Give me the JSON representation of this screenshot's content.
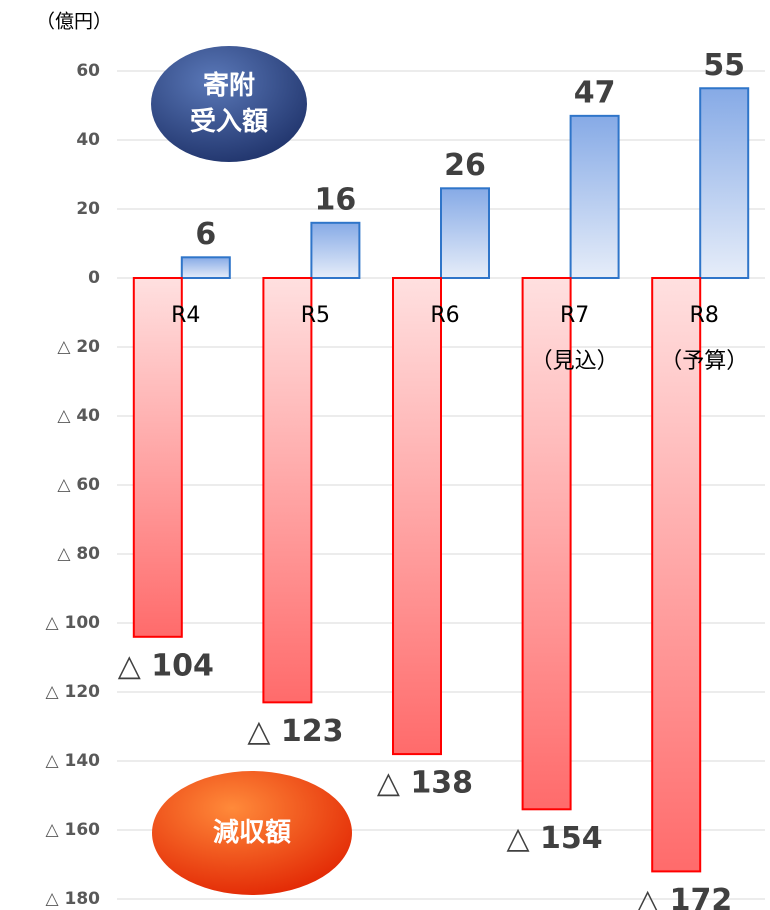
{
  "chart_data": {
    "type": "bar",
    "unit_label": "（億円）",
    "categories": [
      "R4",
      "R5",
      "R6",
      "R7\n（見込）",
      "R8\n（予算）"
    ],
    "series": [
      {
        "name": "寄附\n受入額",
        "color": "#2f75c9",
        "values": [
          6,
          16,
          26,
          47,
          55
        ]
      },
      {
        "name": "減収額",
        "color": "#ff0000",
        "values": [
          -104,
          -123,
          -138,
          -154,
          -172
        ],
        "value_labels": [
          "△ 104",
          "△ 123",
          "△ 138",
          "△ 154",
          "△ 172"
        ]
      }
    ],
    "ylim": [
      -180,
      60
    ],
    "yticks": [
      60,
      40,
      20,
      0,
      {
        "value": -20,
        "label": "△ 20"
      },
      {
        "value": -40,
        "label": "△ 40"
      },
      {
        "value": -60,
        "label": "△ 60"
      },
      {
        "value": -80,
        "label": "△ 80"
      },
      {
        "value": -100,
        "label": "△ 100"
      },
      {
        "value": -120,
        "label": "△ 120"
      },
      {
        "value": -140,
        "label": "△ 140"
      },
      {
        "value": -160,
        "label": "△ 160"
      },
      {
        "value": -180,
        "label": "△ 180"
      }
    ],
    "grid": true
  }
}
